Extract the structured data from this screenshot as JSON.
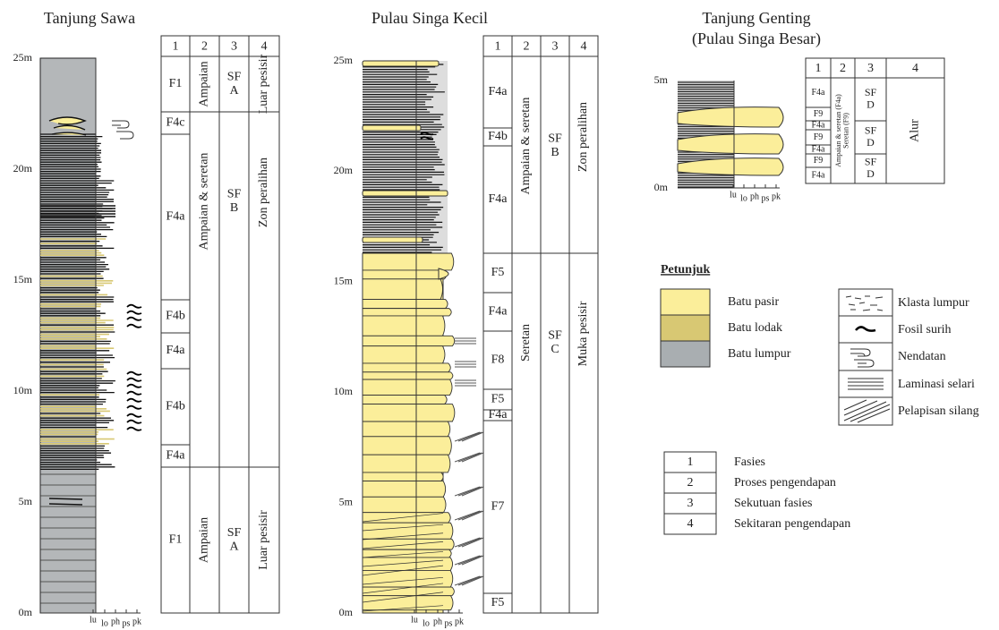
{
  "sections": [
    {
      "title": [
        "Tanjung Sawa"
      ],
      "depths": [
        "25m",
        "20m",
        "15m",
        "10m",
        "5m",
        "0m"
      ],
      "grain": [
        "lu",
        "lo",
        "ph",
        "ps",
        "pk"
      ],
      "header": [
        "1",
        "2",
        "3",
        "4"
      ],
      "columns": [
        [
          [
            "F1"
          ],
          [
            "F4c"
          ],
          [
            "F4a"
          ],
          [
            "F4b"
          ],
          [
            "F4a"
          ],
          [
            "F4b"
          ],
          [
            "F4a"
          ],
          [
            "F1"
          ]
        ],
        [
          [
            "Ampaian"
          ],
          [
            "Ampaian & seretan"
          ],
          [
            "Ampaian"
          ]
        ],
        [
          [
            "SF",
            "A"
          ],
          [
            "SF",
            "B"
          ],
          [
            "SF",
            "A"
          ]
        ],
        [
          [
            "Luar pesisir"
          ],
          [
            "Zon peralihan"
          ],
          [
            "Luar pesisir"
          ]
        ]
      ]
    },
    {
      "title": [
        "Pulau Singa Kecil"
      ],
      "depths": [
        "25m",
        "20m",
        "15m",
        "10m",
        "5m",
        "0m"
      ],
      "grain": [
        "lu",
        "lo",
        "ph",
        "ps",
        "pk"
      ],
      "header": [
        "1",
        "2",
        "3",
        "4"
      ],
      "columns": [
        [
          [
            "F4a"
          ],
          [
            "F4b"
          ],
          [
            "F4a"
          ],
          [
            "F5"
          ],
          [
            "F4a"
          ],
          [
            "F8"
          ],
          [
            "F5"
          ],
          [
            "F4a"
          ],
          [
            "F7"
          ],
          [
            "F5"
          ]
        ],
        [
          [
            "Ampaian & seretan"
          ],
          [
            "Seretan"
          ]
        ],
        [
          [
            "SF",
            "B"
          ],
          [
            "SF",
            "C"
          ]
        ],
        [
          [
            "Zon peralihan"
          ],
          [
            "Muka pesisir"
          ]
        ]
      ]
    },
    {
      "title": [
        "Tanjung Genting",
        "(Pulau Singa Besar)"
      ],
      "depths": [
        "5m",
        "0m"
      ],
      "grain": [
        "lu",
        "lo",
        "ph",
        "ps",
        "pk"
      ],
      "header": [
        "1",
        "2",
        "3",
        "4"
      ],
      "columns": [
        [
          [
            "F4a"
          ],
          [
            "F9"
          ],
          [
            "F4a"
          ],
          [
            "F9"
          ],
          [
            "F4a"
          ],
          [
            "F9"
          ],
          [
            "F4a"
          ]
        ],
        [
          [
            "Ampaian & seretan (F4a)",
            "Seretan (F9)"
          ]
        ],
        [
          [
            "SF",
            "D"
          ],
          [
            "SF",
            "D"
          ],
          [
            "SF",
            "D"
          ]
        ],
        [
          [
            "Alur"
          ]
        ]
      ]
    }
  ],
  "legend": {
    "title": "Petunjuk",
    "lithology": [
      "Batu pasir",
      "Batu lodak",
      "Batu lumpur"
    ],
    "symbols": [
      "Klasta lumpur",
      "Fosil surih",
      "Nendatan",
      "Laminasi selari",
      "Pelapisan silang"
    ],
    "key": [
      {
        "number": "1",
        "label": "Fasies"
      },
      {
        "number": "2",
        "label": "Proses pengendapan"
      },
      {
        "number": "3",
        "label": "Sekutuan fasies"
      },
      {
        "number": "4",
        "label": "Sekitaran pengendapan"
      }
    ]
  }
}
